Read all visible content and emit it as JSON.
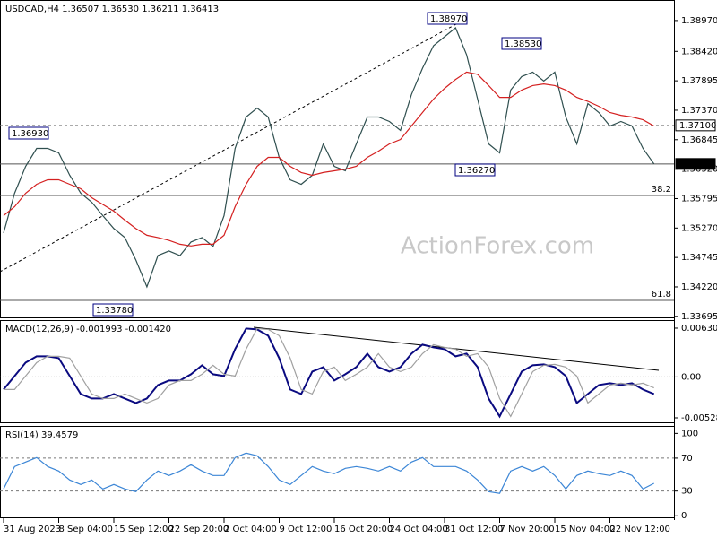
{
  "chart_data": [
    {
      "type": "line",
      "title": "USDCAD,H4 1.36507 1.36530 1.36211 1.36413",
      "watermark": "ActionForex.com",
      "categories": [
        "31 Aug 2023",
        null,
        null,
        null,
        null,
        "8 Sep 04:00",
        null,
        null,
        null,
        null,
        "15 Sep 12:00",
        null,
        null,
        null,
        null,
        "22 Sep 20:00",
        null,
        null,
        null,
        null,
        "2 Oct 04:00",
        null,
        null,
        null,
        null,
        "9 Oct 12:00",
        null,
        null,
        null,
        null,
        "16 Oct 20:00",
        null,
        null,
        null,
        null,
        "24 Oct 04:00",
        null,
        null,
        null,
        null,
        "31 Oct 12:00",
        null,
        null,
        null,
        null,
        "7 Nov 20:00",
        null,
        null,
        null,
        null,
        "15 Nov 04:00",
        null,
        null,
        null,
        null,
        "22 Nov 12:00",
        null,
        null,
        null,
        null
      ],
      "series": [
        {
          "color": "#2f4f4f",
          "values": [
            1.3518,
            1.3589,
            1.3637,
            1.3669,
            1.3669,
            1.3661,
            1.3621,
            1.3589,
            1.3573,
            1.3549,
            1.3526,
            1.351,
            1.347,
            1.3422,
            1.3478,
            1.3486,
            1.3478,
            1.3502,
            1.351,
            1.3494,
            1.3549,
            1.3669,
            1.3725,
            1.3741,
            1.3725,
            1.3653,
            1.3613,
            1.3605,
            1.3621,
            1.3677,
            1.3637,
            1.3629,
            1.3677,
            1.3725,
            1.3725,
            1.3717,
            1.3701,
            1.3765,
            1.3812,
            1.3852,
            1.3868,
            1.3884,
            1.3836,
            1.3757,
            1.3677,
            1.3661,
            1.3773,
            1.3797,
            1.3805,
            1.3789,
            1.3805,
            1.3725,
            1.3677,
            1.3749,
            1.3733,
            1.3709,
            1.3717,
            1.3709,
            1.3669,
            1.36413
          ]
        },
        {
          "color": "#d42020",
          "values": [
            1.3549,
            1.3565,
            1.3589,
            1.3605,
            1.3613,
            1.3613,
            1.3605,
            1.3597,
            1.3581,
            1.3569,
            1.3557,
            1.3541,
            1.3526,
            1.3514,
            1.351,
            1.3505,
            1.3498,
            1.3495,
            1.3498,
            1.3498,
            1.3514,
            1.3565,
            1.3605,
            1.3637,
            1.3653,
            1.3653,
            1.3637,
            1.3626,
            1.3621,
            1.3626,
            1.3629,
            1.3632,
            1.3637,
            1.3653,
            1.3664,
            1.3677,
            1.3685,
            1.3709,
            1.3733,
            1.3757,
            1.3776,
            1.3792,
            1.3805,
            1.3801,
            1.3781,
            1.376,
            1.376,
            1.3773,
            1.3781,
            1.3784,
            1.3781,
            1.3773,
            1.376,
            1.3753,
            1.3744,
            1.3733,
            1.3728,
            1.3725,
            1.372,
            1.3709
          ]
        }
      ],
      "ylim": [
        1.3366,
        1.3932
      ],
      "yticks": [
        1.33695,
        {
          "value": 1.3422,
          "label": "1.34220"
        },
        1.34745,
        {
          "value": 1.3527,
          "label": "1.35270"
        },
        1.35795,
        {
          "value": 1.3632,
          "label": "1.36320"
        },
        1.36845,
        {
          "value": 1.3737,
          "label": "1.37370"
        },
        1.37895,
        {
          "value": 1.3842,
          "label": "1.38420"
        },
        {
          "value": 1.3897,
          "label": "1.38970"
        }
      ],
      "hlines": [
        {
          "value": 1.371,
          "label": "1.37100",
          "style": "dashed",
          "label_at": "axis"
        },
        {
          "value": 1.36413,
          "label": "1.36413",
          "style": "solid",
          "label_at": "axis-dark"
        },
        {
          "value": 1.3585,
          "label": "38.2",
          "style": "solid",
          "label_at": "inside"
        },
        {
          "value": 1.3398,
          "label": "61.8",
          "style": "solid",
          "label_at": "inside"
        }
      ],
      "annotations": [
        "1.36930",
        "1.33780",
        "1.38970",
        "1.38530",
        "1.36270"
      ]
    },
    {
      "type": "line",
      "title": "MACD(12,26,9) -0.001993 -0.001420",
      "series": [
        {
          "color": "#0a0a80",
          "values": [
            -0.00162,
            0.00012,
            0.00185,
            0.00267,
            0.00267,
            0.00243,
            0.00012,
            -0.0022,
            -0.00278,
            -0.00278,
            -0.0022,
            -0.00278,
            -0.00336,
            -0.00278,
            -0.00104,
            -0.00046,
            -0.00046,
            0.00035,
            0.00151,
            0.00035,
            0.00012,
            0.00359,
            0.00626,
            0.00614,
            0.00533,
            0.00243,
            -0.00162,
            -0.0022,
            0.0007,
            0.00127,
            -0.00046,
            0.00035,
            0.00127,
            0.00301,
            0.00127,
            0.0007,
            0.00127,
            0.00301,
            0.00417,
            0.00382,
            0.00359,
            0.00267,
            0.00301,
            0.00127,
            -0.00278,
            -0.0051,
            -0.0022,
            0.0007,
            0.00151,
            0.00162,
            0.00127,
            0.00012,
            -0.00336,
            -0.0022,
            -0.00104,
            -0.00081,
            -0.00104,
            -0.00081,
            -0.00162,
            -0.0022
          ]
        },
        {
          "color": "#a0a0a0",
          "values": [
            -0.00162,
            -0.00162,
            0.00012,
            0.00185,
            0.00267,
            0.00267,
            0.00243,
            0.00012,
            -0.0022,
            -0.00278,
            -0.00278,
            -0.0022,
            -0.00278,
            -0.00336,
            -0.00278,
            -0.00104,
            -0.00046,
            -0.00046,
            0.00035,
            0.00151,
            0.00035,
            0.00012,
            0.00359,
            0.00626,
            0.00614,
            0.00533,
            0.00243,
            -0.00162,
            -0.0022,
            0.0007,
            0.00127,
            -0.00046,
            0.00035,
            0.00127,
            0.00301,
            0.00127,
            0.0007,
            0.00127,
            0.00301,
            0.00417,
            0.00382,
            0.00359,
            0.00267,
            0.00301,
            0.00127,
            -0.00278,
            -0.0051,
            -0.0022,
            0.0007,
            0.00151,
            0.00162,
            0.00127,
            0.00012,
            -0.00336,
            -0.0022,
            -0.00104,
            -0.00081,
            -0.00104,
            -0.00081,
            -0.00142
          ]
        }
      ],
      "ylim": [
        -0.00598,
        0.00723
      ],
      "yticks": [
        -0.005283,
        {
          "value": 0,
          "label": "0.00"
        },
        0.006305
      ],
      "hlines": [
        {
          "value": 0,
          "style": "dotted"
        }
      ]
    },
    {
      "type": "line",
      "title": "RSI(14) 39.4579",
      "series": [
        {
          "color": "#3c86d6",
          "values": [
            32.6,
            59.8,
            65.2,
            70.7,
            59.8,
            54.3,
            43.5,
            38,
            43.5,
            32.6,
            38,
            32.6,
            29.3,
            43.5,
            54.3,
            48.9,
            54.3,
            62,
            54.3,
            48.9,
            48.9,
            70.7,
            76.1,
            72.8,
            59.8,
            43.5,
            38,
            48.9,
            59.8,
            54.3,
            51.1,
            57.6,
            59.8,
            57.6,
            54.3,
            59.8,
            54.3,
            65.2,
            70.7,
            59.8,
            59.8,
            59.8,
            54.3,
            43.5,
            29.3,
            27.2,
            54.3,
            59.8,
            54.3,
            59.8,
            48.9,
            32.6,
            48.9,
            54.3,
            51.1,
            48.9,
            54.3,
            48.9,
            32.6,
            39.4579
          ]
        }
      ],
      "ylim": [
        -3,
        108
      ],
      "yticks": [
        0,
        30,
        70,
        100
      ],
      "hlines": [
        {
          "value": 70,
          "style": "dashed"
        },
        {
          "value": 30,
          "style": "dashed"
        }
      ]
    }
  ]
}
